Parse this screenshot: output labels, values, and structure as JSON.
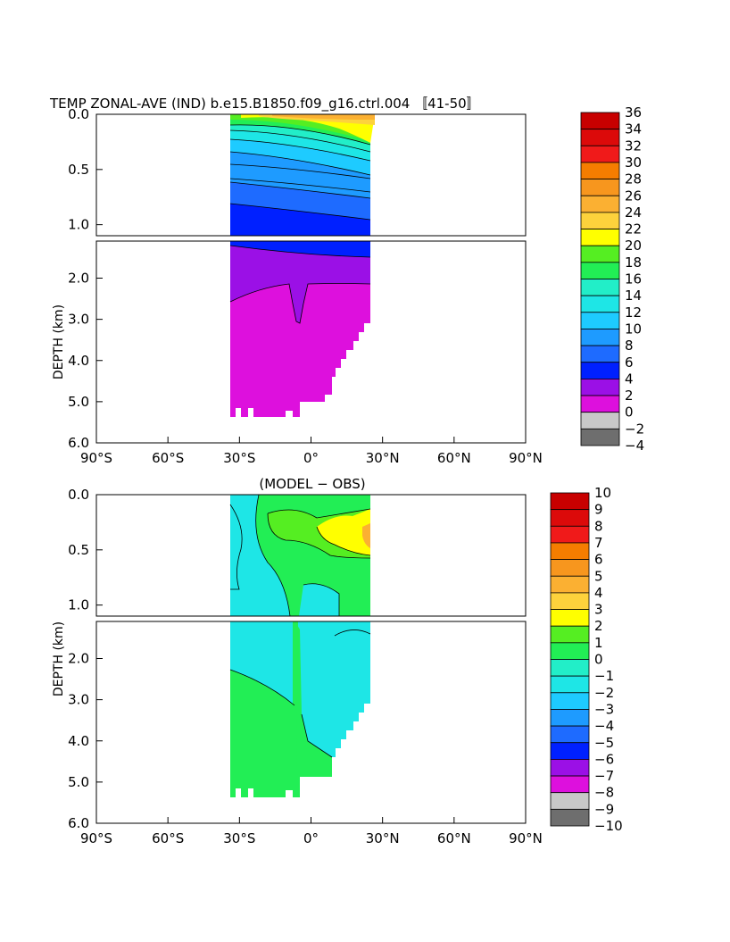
{
  "chart_data": [
    {
      "type": "heatmap",
      "title": "TEMP ZONAL-AVE (IND) b.e15.B1850.f09_g16.ctrl.004 〚41-50〛",
      "ylabel": "DEPTH (km)",
      "xlabel": "",
      "x_ticks": [
        "90°S",
        "60°S",
        "30°S",
        "0°",
        "30°N",
        "60°N",
        "90°N"
      ],
      "xlim": [
        -90,
        90
      ],
      "ylim": [
        6.0,
        0.0
      ],
      "upper_panel": {
        "ylim": [
          0.0,
          1.1
        ],
        "y_ticks": [
          "0.0",
          "0.5",
          "1.0"
        ]
      },
      "lower_panel": {
        "ylim": [
          1.1,
          6.0
        ],
        "y_ticks": [
          "2.0",
          "3.0",
          "4.0",
          "5.0",
          "6.0"
        ]
      },
      "data_extent": {
        "lat_min": -34,
        "lat_max": 25,
        "max_depth_km": 5.4
      },
      "colorbar": {
        "labels": [
          "36",
          "34",
          "32",
          "30",
          "28",
          "26",
          "24",
          "22",
          "20",
          "18",
          "16",
          "14",
          "12",
          "10",
          "8",
          "6",
          "4",
          "2",
          "0",
          "−2",
          "−4"
        ],
        "colors": [
          "#c80000",
          "#dc0a0a",
          "#f01a1a",
          "#f57d00",
          "#f7961e",
          "#fbb032",
          "#fdd23c",
          "#ffff00",
          "#55ee22",
          "#22ee55",
          "#22eec8",
          "#1ee6e6",
          "#1ecbff",
          "#1e9bff",
          "#1e6bff",
          "#0020ff",
          "#9b10e6",
          "#dd10dd",
          "#c8c8c8",
          "#6e6e6e"
        ]
      },
      "levels": [
        {
          "lat": [
            -34,
            -25,
            -15,
            -5,
            5,
            15,
            25
          ],
          "depth_km": [
            0.02,
            0.04,
            0.04,
            0.02,
            0.0,
            0.0,
            0.0
          ],
          "value_range": "26-28"
        },
        {
          "depth_km_at_lat_-30": 0.1,
          "value_range": "20-22"
        },
        {
          "depth_km_at_lat_-30": 0.6,
          "value_range": "10-12"
        },
        {
          "depth_km_at_lat_-30": 0.85,
          "value_range": "6-8"
        },
        {
          "depth_km_at_lat_-30": 1.2,
          "value_range": "4-6"
        },
        {
          "depth_km_at_lat_-30": 2.6,
          "value_range": "2-4"
        },
        {
          "depth_km_below": 2.6,
          "value_range": "0-2"
        }
      ]
    },
    {
      "type": "heatmap",
      "title": "(MODEL − OBS)",
      "ylabel": "DEPTH (km)",
      "xlabel": "",
      "x_ticks": [
        "90°S",
        "60°S",
        "30°S",
        "0°",
        "30°N",
        "60°N",
        "90°N"
      ],
      "xlim": [
        -90,
        90
      ],
      "ylim": [
        6.0,
        0.0
      ],
      "upper_panel": {
        "ylim": [
          0.0,
          1.1
        ],
        "y_ticks": [
          "0.0",
          "0.5",
          "1.0"
        ]
      },
      "lower_panel": {
        "ylim": [
          1.1,
          6.0
        ],
        "y_ticks": [
          "2.0",
          "3.0",
          "4.0",
          "5.0",
          "6.0"
        ]
      },
      "data_extent": {
        "lat_min": -34,
        "lat_max": 25,
        "max_depth_km": 5.4
      },
      "colorbar": {
        "labels": [
          "10",
          "9",
          "8",
          "7",
          "6",
          "5",
          "4",
          "3",
          "2",
          "1",
          "0",
          "−1",
          "−2",
          "−3",
          "−4",
          "−5",
          "−6",
          "−7",
          "−8",
          "−9",
          "−10"
        ],
        "colors": [
          "#c80000",
          "#dc0a0a",
          "#f01a1a",
          "#f57d00",
          "#f7961e",
          "#fbb032",
          "#fdd23c",
          "#ffff00",
          "#55ee22",
          "#22ee55",
          "#22eec8",
          "#1ee6e6",
          "#1ecbff",
          "#1e9bff",
          "#1e6bff",
          "#0020ff",
          "#9b10e6",
          "#dd10dd",
          "#c8c8c8",
          "#6e6e6e"
        ]
      },
      "regions": [
        {
          "value_range": "2-3",
          "lat": [
            5,
            25
          ],
          "depth_km": [
            0.2,
            0.45
          ]
        },
        {
          "value_range": "1-2",
          "lat": [
            -20,
            25
          ],
          "depth_km": [
            0.1,
            0.7
          ]
        },
        {
          "value_range": "0-1",
          "lat": [
            -34,
            -5
          ],
          "depth_km": [
            2.2,
            5.4
          ]
        },
        {
          "value_range": "-1-0",
          "lat": [
            -34,
            25
          ],
          "depth_km": [
            0.0,
            5.4
          ]
        }
      ]
    }
  ]
}
